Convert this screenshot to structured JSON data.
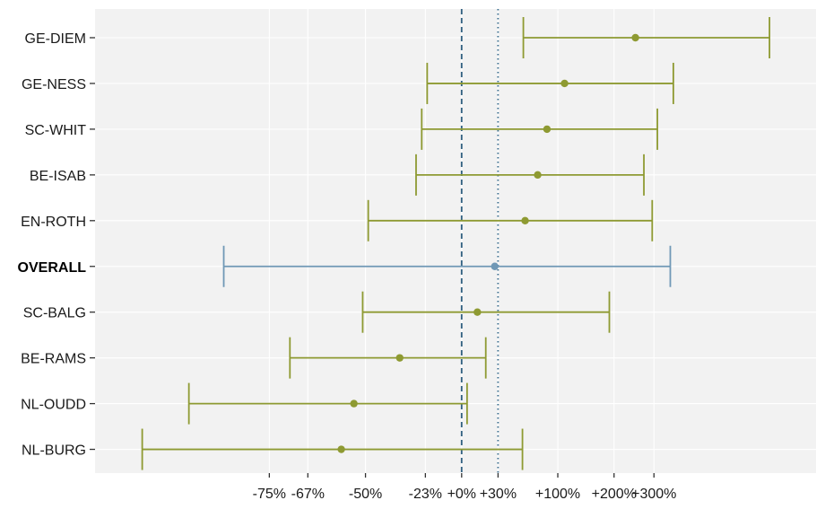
{
  "chart_data": {
    "type": "forest",
    "title": "",
    "xlabel": "",
    "ylabel": "",
    "x_scale": "log",
    "x_tick_labels": [
      "-75%",
      "-67%",
      "-50%",
      "-23%",
      "+0%",
      "+30%",
      "+100%",
      "+200%",
      "+300%"
    ],
    "x_tick_values": [
      -75,
      -67,
      -50,
      -23,
      0,
      30,
      100,
      200,
      300
    ],
    "reference_lines": [
      {
        "value": 0,
        "style": "dashed",
        "color": "#2f5f7f"
      },
      {
        "value": 30,
        "style": "dotted",
        "color": "#3b6f8f"
      }
    ],
    "rows": [
      {
        "label": "GE-DIEM",
        "estimate": 250,
        "lower": 56,
        "upper": 820,
        "bold": false,
        "color": "#8e9a32"
      },
      {
        "label": "GE-NESS",
        "estimate": 110,
        "lower": -22,
        "upper": 360,
        "bold": false,
        "color": "#8e9a32"
      },
      {
        "label": "SC-WHIT",
        "estimate": 85,
        "lower": -25,
        "upper": 310,
        "bold": false,
        "color": "#8e9a32"
      },
      {
        "label": "BE-ISAB",
        "estimate": 73,
        "lower": -28,
        "upper": 272,
        "bold": false,
        "color": "#8e9a32"
      },
      {
        "label": "EN-ROTH",
        "estimate": 58,
        "lower": -49,
        "upper": 295,
        "bold": false,
        "color": "#8e9a32"
      },
      {
        "label": "OVERALL",
        "estimate": 27,
        "lower": -82,
        "upper": 350,
        "bold": true,
        "color": "#6f98b6"
      },
      {
        "label": "SC-BALG",
        "estimate": 12,
        "lower": -51,
        "upper": 190,
        "bold": false,
        "color": "#8e9a32"
      },
      {
        "label": "BE-RAMS",
        "estimate": -36,
        "lower": -71,
        "upper": 19,
        "bold": false,
        "color": "#8e9a32"
      },
      {
        "label": "NL-OUDD",
        "estimate": -54,
        "lower": -86,
        "upper": 4,
        "bold": false,
        "color": "#8e9a32"
      },
      {
        "label": "NL-BURG",
        "estimate": -58,
        "lower": -90,
        "upper": 55,
        "bold": false,
        "color": "#8e9a32"
      }
    ],
    "colors": {
      "panel_background": "#f2f2f2",
      "grid": "#ffffff",
      "site": "#8e9a32",
      "overall": "#6f98b6"
    }
  }
}
